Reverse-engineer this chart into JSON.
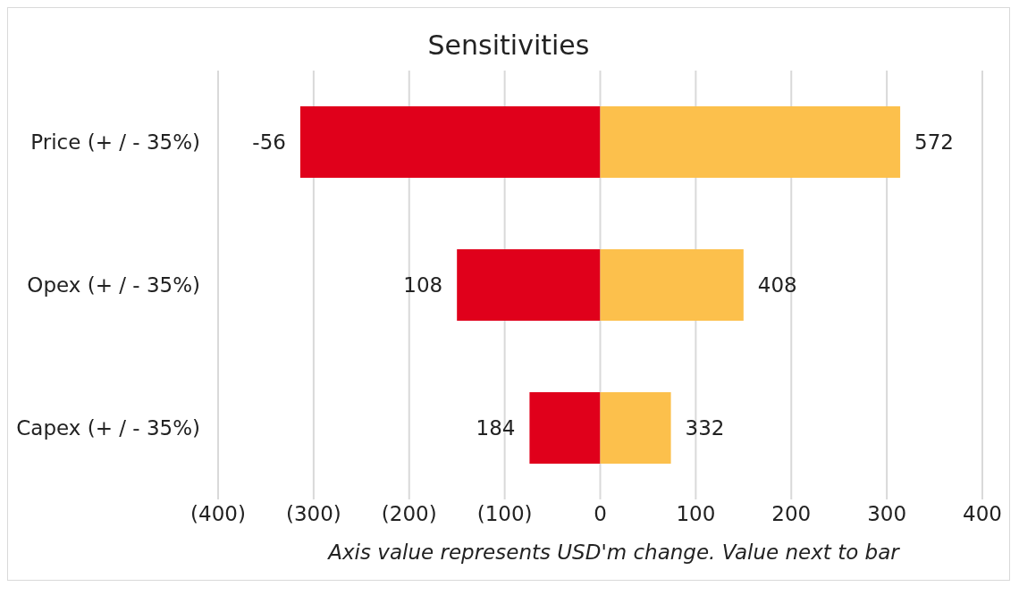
{
  "chart_data": {
    "type": "bar",
    "title": "Sensitivities",
    "xlabel": "Axis value represents USD'm change. Value next to bar",
    "orientation": "horizontal",
    "stacked": true,
    "categories": [
      "Price (+ / - 35%)",
      "Opex (+ / - 35%)",
      "Capex (+ / - 35%)"
    ],
    "series": [
      {
        "color": "#e0001b",
        "values": [
          -314,
          -150,
          -74
        ]
      },
      {
        "color": "#fcc04c",
        "values": [
          314,
          150,
          74
        ]
      }
    ],
    "annotations": [
      {
        "text": "-56",
        "x": -314,
        "y": "Price (+ / - 35%)"
      },
      {
        "text": "108",
        "x": -150,
        "y": "Opex (+ / - 35%)"
      },
      {
        "text": "184",
        "x": -74,
        "y": "Capex (+ / - 35%)"
      },
      {
        "text": "572",
        "x": 314,
        "y": "Price (+ / - 35%)"
      },
      {
        "text": "408",
        "x": 150,
        "y": "Opex (+ / - 35%)"
      },
      {
        "text": "332",
        "x": 74,
        "y": "Capex (+ / - 35%)"
      }
    ],
    "xlim": [
      -400,
      400
    ],
    "xticks": [
      {
        "value": -400,
        "label": "(400)"
      },
      {
        "value": -300,
        "label": "(300)"
      },
      {
        "value": -200,
        "label": "(200)"
      },
      {
        "value": -100,
        "label": "(100)"
      },
      0,
      100,
      200,
      300,
      400
    ],
    "grid": "x",
    "legend": false
  }
}
